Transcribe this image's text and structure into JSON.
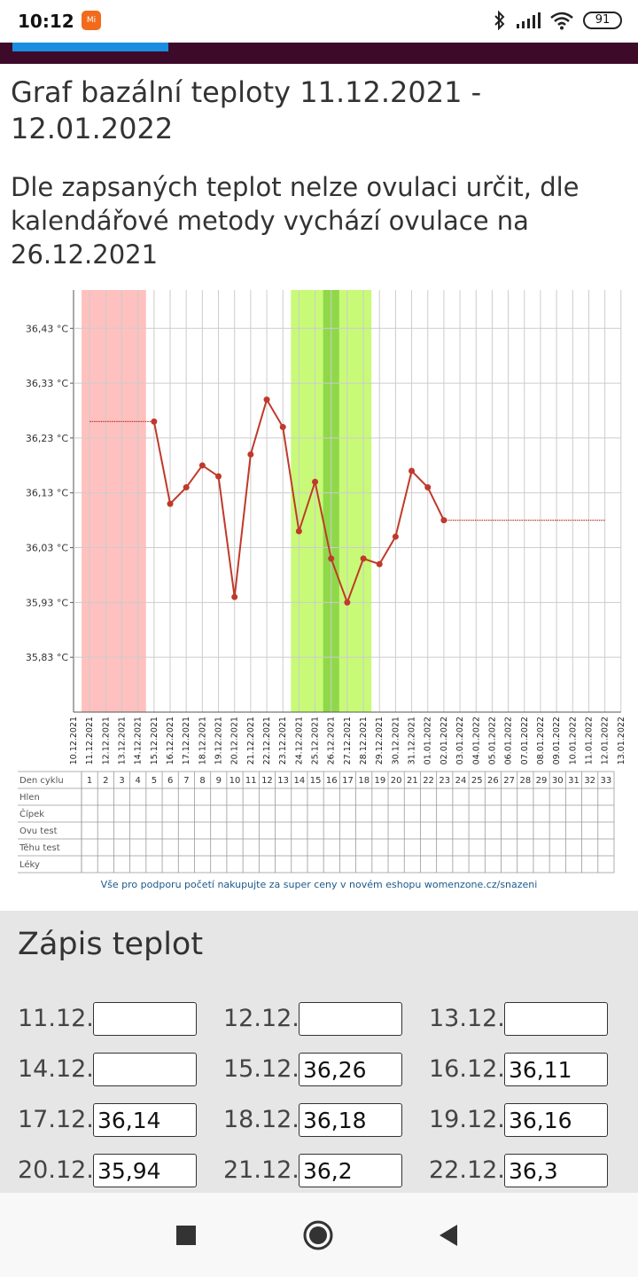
{
  "status": {
    "time": "10:12",
    "battery": "91",
    "mi_label": "Mi"
  },
  "page": {
    "title": "Graf bazální teploty 11.12.2021 - 12.01.2022",
    "subtitle": "Dle zapsaných teplot nelze ovulaci určit, dle kalendářové metody vychází ovulace na 26.12.2021"
  },
  "colors": {
    "line": "#c0392b",
    "period_band": "#ffc0c0",
    "fertile_band": "#c8fa78",
    "ovulation_band": "#8fd84a",
    "appbar": "#3d0a2a",
    "accent": "#1a8de0",
    "link": "#1a5a8a"
  },
  "chart_data": {
    "type": "line",
    "title": "",
    "ylabel": "",
    "xlabel": "",
    "y_ticks": [
      "36,43 °C",
      "36,33 °C",
      "36,23 °C",
      "36,13 °C",
      "36,03 °C",
      "35,93 °C",
      "35,83 °C"
    ],
    "y_tick_values": [
      36.43,
      36.33,
      36.23,
      36.13,
      36.03,
      35.93,
      35.83
    ],
    "ylim": [
      35.73,
      36.5
    ],
    "x_labels": [
      "10.12.2021",
      "11.12.2021",
      "12.12.2021",
      "13.12.2021",
      "14.12.2021",
      "15.12.2021",
      "16.12.2021",
      "17.12.2021",
      "18.12.2021",
      "19.12.2021",
      "20.12.2021",
      "21.12.2021",
      "22.12.2021",
      "23.12.2021",
      "24.12.2021",
      "25.12.2021",
      "26.12.2021",
      "27.12.2021",
      "28.12.2021",
      "29.12.2021",
      "30.12.2021",
      "31.12.2021",
      "01.01.2022",
      "02.01.2022",
      "03.01.2022",
      "04.01.2022",
      "05.01.2022",
      "06.01.2022",
      "07.01.2022",
      "08.01.2022",
      "09.01.2022",
      "10.01.2022",
      "11.01.2022",
      "12.01.2022",
      "13.01.2022"
    ],
    "series": [
      {
        "values": [
          null,
          null,
          null,
          null,
          null,
          36.26,
          36.11,
          36.14,
          36.18,
          36.16,
          35.94,
          36.2,
          36.3,
          36.25,
          36.06,
          36.15,
          36.01,
          35.93,
          36.01,
          36.0,
          36.05,
          36.17,
          36.14,
          36.08,
          null,
          null,
          null,
          null,
          null,
          null,
          null,
          null,
          null,
          null,
          null
        ]
      }
    ],
    "dotted_start_value": 36.26,
    "dotted_end_value": 36.08,
    "period_days": [
      "11.12.2021",
      "12.12.2021",
      "13.12.2021",
      "14.12.2021"
    ],
    "fertile_days": [
      "24.12.2021",
      "25.12.2021",
      "26.12.2021",
      "27.12.2021",
      "28.12.2021"
    ],
    "ovulation_day": "26.12.2021",
    "grid": true
  },
  "cycle_table": {
    "row_labels": [
      "Den cyklu",
      "Hlen",
      "Čípek",
      "Ovu test",
      "Těhu test",
      "Léky"
    ],
    "days": [
      "1",
      "2",
      "3",
      "4",
      "5",
      "6",
      "7",
      "8",
      "9",
      "10",
      "11",
      "12",
      "13",
      "14",
      "15",
      "16",
      "17",
      "18",
      "19",
      "20",
      "21",
      "22",
      "23",
      "24",
      "25",
      "26",
      "27",
      "28",
      "29",
      "30",
      "31",
      "32",
      "33"
    ]
  },
  "promo": "Vše pro podporu početí nakupujte za super ceny v novém eshopu womenzone.cz/snazeni",
  "entry": {
    "title": "Zápis teplot",
    "rows": [
      [
        {
          "label": "11.12.",
          "value": ""
        },
        {
          "label": "12.12.",
          "value": ""
        },
        {
          "label": "13.12.",
          "value": ""
        }
      ],
      [
        {
          "label": "14.12.",
          "value": ""
        },
        {
          "label": "15.12.",
          "value": "36,26"
        },
        {
          "label": "16.12.",
          "value": "36,11"
        }
      ],
      [
        {
          "label": "17.12.",
          "value": "36,14"
        },
        {
          "label": "18.12.",
          "value": "36,18"
        },
        {
          "label": "19.12.",
          "value": "36,16"
        }
      ],
      [
        {
          "label": "20.12.",
          "value": "35,94"
        },
        {
          "label": "21.12.",
          "value": "36,2"
        },
        {
          "label": "22.12.",
          "value": "36,3"
        }
      ]
    ]
  }
}
